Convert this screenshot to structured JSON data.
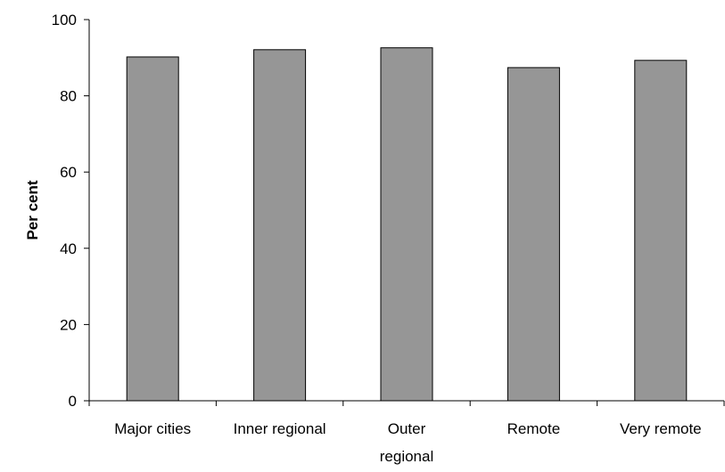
{
  "chart_data": {
    "type": "bar",
    "title": "",
    "xlabel": "",
    "ylabel": "Per cent",
    "categories": [
      [
        "Major cities"
      ],
      [
        "Inner regional"
      ],
      [
        "Outer",
        "regional"
      ],
      [
        "Remote"
      ],
      [
        "Very remote"
      ]
    ],
    "values": [
      90.2,
      92.1,
      92.6,
      87.4,
      89.3
    ],
    "ylim": [
      0,
      100
    ],
    "yticks": [
      0,
      20,
      40,
      60,
      80,
      100
    ],
    "yticks_labels": [
      "0",
      "20",
      "40",
      "60",
      "80",
      "100"
    ],
    "grid": false,
    "legend": "none",
    "colors": {
      "bar_fill": "#969696",
      "bar_stroke": "#000000",
      "axis": "#000000"
    }
  }
}
